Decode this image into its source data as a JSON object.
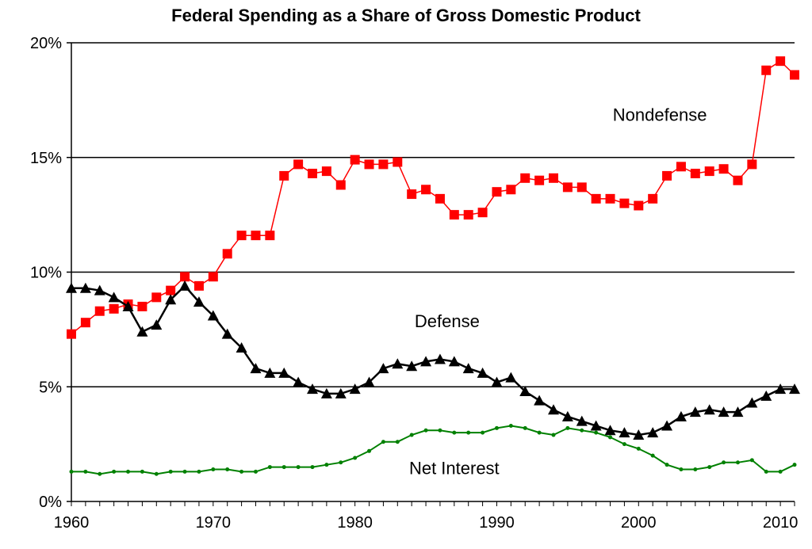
{
  "chart_data": {
    "type": "line",
    "title": "Federal Spending as a Share of Gross Domestic Product",
    "xlabel": "",
    "ylabel": "",
    "xlim": [
      1960,
      2011
    ],
    "ylim": [
      0,
      20
    ],
    "x_ticks": [
      1960,
      1970,
      1980,
      1990,
      2000,
      2010
    ],
    "x_tick_labels": [
      "1960",
      "1970",
      "1980",
      "1990",
      "2000",
      "2010"
    ],
    "y_ticks": [
      0,
      5,
      10,
      15,
      20
    ],
    "y_tick_labels": [
      "0%",
      "5%",
      "10%",
      "15%",
      "20%"
    ],
    "grid": "horizontal",
    "legend": "none",
    "x": [
      1960,
      1961,
      1962,
      1963,
      1964,
      1965,
      1966,
      1967,
      1968,
      1969,
      1970,
      1971,
      1972,
      1973,
      1974,
      1975,
      1976,
      1977,
      1978,
      1979,
      1980,
      1981,
      1982,
      1983,
      1984,
      1985,
      1986,
      1987,
      1988,
      1989,
      1990,
      1991,
      1992,
      1993,
      1994,
      1995,
      1996,
      1997,
      1998,
      1999,
      2000,
      2001,
      2002,
      2003,
      2004,
      2005,
      2006,
      2007,
      2008,
      2009,
      2010,
      2011
    ],
    "series": [
      {
        "name": "Nondefense",
        "color": "#ff0000",
        "marker": "square",
        "values": [
          7.3,
          7.8,
          8.3,
          8.4,
          8.6,
          8.5,
          8.9,
          9.2,
          9.8,
          9.4,
          9.8,
          10.8,
          11.6,
          11.6,
          11.6,
          14.2,
          14.7,
          14.3,
          14.4,
          13.8,
          14.9,
          14.7,
          14.7,
          14.8,
          13.4,
          13.6,
          13.2,
          12.5,
          12.5,
          12.6,
          13.5,
          13.6,
          14.1,
          14.0,
          14.1,
          13.7,
          13.7,
          13.2,
          13.2,
          13.0,
          12.9,
          13.2,
          14.2,
          14.6,
          14.3,
          14.4,
          14.5,
          14.0,
          14.7,
          18.8,
          19.2,
          18.6
        ]
      },
      {
        "name": "Defense",
        "color": "#000000",
        "marker": "triangle",
        "values": [
          9.3,
          9.3,
          9.2,
          8.9,
          8.5,
          7.4,
          7.7,
          8.8,
          9.4,
          8.7,
          8.1,
          7.3,
          6.7,
          5.8,
          5.6,
          5.6,
          5.2,
          4.9,
          4.7,
          4.7,
          4.9,
          5.2,
          5.8,
          6.0,
          5.9,
          6.1,
          6.2,
          6.1,
          5.8,
          5.6,
          5.2,
          5.4,
          4.8,
          4.4,
          4.0,
          3.7,
          3.5,
          3.3,
          3.1,
          3.0,
          2.9,
          3.0,
          3.3,
          3.7,
          3.9,
          4.0,
          3.9,
          3.9,
          4.3,
          4.6,
          4.9,
          4.9
        ]
      },
      {
        "name": "Net Interest",
        "color": "#008000",
        "marker": "dot",
        "values": [
          1.3,
          1.3,
          1.2,
          1.3,
          1.3,
          1.3,
          1.2,
          1.3,
          1.3,
          1.3,
          1.4,
          1.4,
          1.3,
          1.3,
          1.5,
          1.5,
          1.5,
          1.5,
          1.6,
          1.7,
          1.9,
          2.2,
          2.6,
          2.6,
          2.9,
          3.1,
          3.1,
          3.0,
          3.0,
          3.0,
          3.2,
          3.3,
          3.2,
          3.0,
          2.9,
          3.2,
          3.1,
          3.0,
          2.8,
          2.5,
          2.3,
          2.0,
          1.6,
          1.4,
          1.4,
          1.5,
          1.7,
          1.7,
          1.8,
          1.3,
          1.3,
          1.6
        ]
      }
    ],
    "annotations": [
      {
        "text": "Nondefense",
        "x": 2001.5,
        "y": 16.6
      },
      {
        "text": "Defense",
        "x": 1986.5,
        "y": 7.6
      },
      {
        "text": "Net Interest",
        "x": 1987,
        "y": 1.2
      }
    ]
  }
}
